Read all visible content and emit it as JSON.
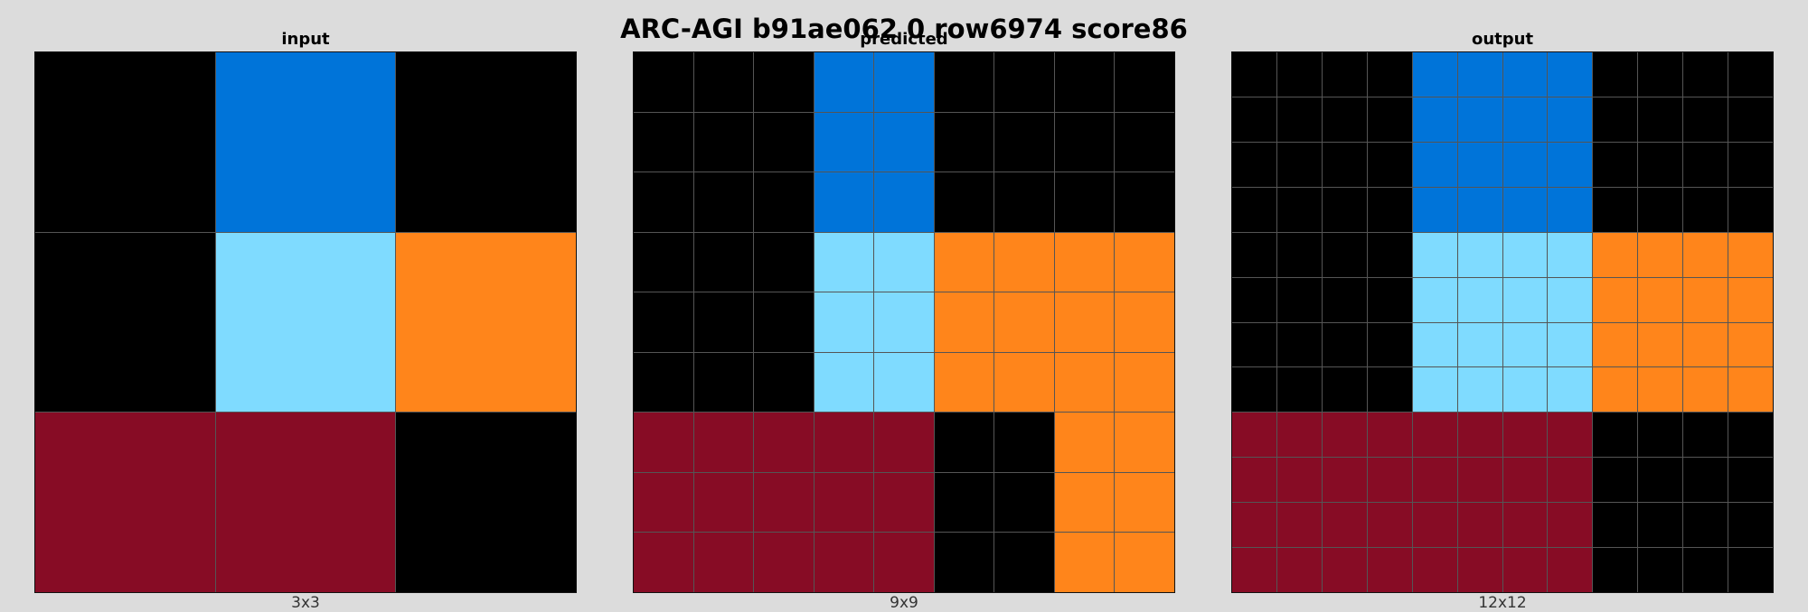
{
  "title": "ARC-AGI b91ae062 0 row6974 score86",
  "colors": {
    "0": "#000000",
    "1": "#0074d9",
    "2": "#ff4136",
    "3": "#2ecc40",
    "4": "#ffdc00",
    "5": "#aaaaaa",
    "6": "#f012be",
    "7": "#ff851b",
    "8": "#7fdbff",
    "9": "#870c25"
  },
  "panels": [
    {
      "label": "input",
      "size_label": "3x3",
      "grid": [
        [
          0,
          1,
          0
        ],
        [
          0,
          8,
          7
        ],
        [
          9,
          9,
          0
        ]
      ]
    },
    {
      "label": "predicted",
      "size_label": "9x9",
      "grid": [
        [
          0,
          0,
          0,
          1,
          1,
          0,
          0,
          0,
          0
        ],
        [
          0,
          0,
          0,
          1,
          1,
          0,
          0,
          0,
          0
        ],
        [
          0,
          0,
          0,
          1,
          1,
          0,
          0,
          0,
          0
        ],
        [
          0,
          0,
          0,
          8,
          8,
          7,
          7,
          7,
          7
        ],
        [
          0,
          0,
          0,
          8,
          8,
          7,
          7,
          7,
          7
        ],
        [
          0,
          0,
          0,
          8,
          8,
          7,
          7,
          7,
          7
        ],
        [
          9,
          9,
          9,
          9,
          9,
          0,
          0,
          7,
          7
        ],
        [
          9,
          9,
          9,
          9,
          9,
          0,
          0,
          7,
          7
        ],
        [
          9,
          9,
          9,
          9,
          9,
          0,
          0,
          7,
          7
        ]
      ]
    },
    {
      "label": "output",
      "size_label": "12x12",
      "grid": [
        [
          0,
          0,
          0,
          0,
          1,
          1,
          1,
          1,
          0,
          0,
          0,
          0
        ],
        [
          0,
          0,
          0,
          0,
          1,
          1,
          1,
          1,
          0,
          0,
          0,
          0
        ],
        [
          0,
          0,
          0,
          0,
          1,
          1,
          1,
          1,
          0,
          0,
          0,
          0
        ],
        [
          0,
          0,
          0,
          0,
          1,
          1,
          1,
          1,
          0,
          0,
          0,
          0
        ],
        [
          0,
          0,
          0,
          0,
          8,
          8,
          8,
          8,
          7,
          7,
          7,
          7
        ],
        [
          0,
          0,
          0,
          0,
          8,
          8,
          8,
          8,
          7,
          7,
          7,
          7
        ],
        [
          0,
          0,
          0,
          0,
          8,
          8,
          8,
          8,
          7,
          7,
          7,
          7
        ],
        [
          0,
          0,
          0,
          0,
          8,
          8,
          8,
          8,
          7,
          7,
          7,
          7
        ],
        [
          9,
          9,
          9,
          9,
          9,
          9,
          9,
          9,
          0,
          0,
          0,
          0
        ],
        [
          9,
          9,
          9,
          9,
          9,
          9,
          9,
          9,
          0,
          0,
          0,
          0
        ],
        [
          9,
          9,
          9,
          9,
          9,
          9,
          9,
          9,
          0,
          0,
          0,
          0
        ],
        [
          9,
          9,
          9,
          9,
          9,
          9,
          9,
          9,
          0,
          0,
          0,
          0
        ]
      ]
    }
  ]
}
